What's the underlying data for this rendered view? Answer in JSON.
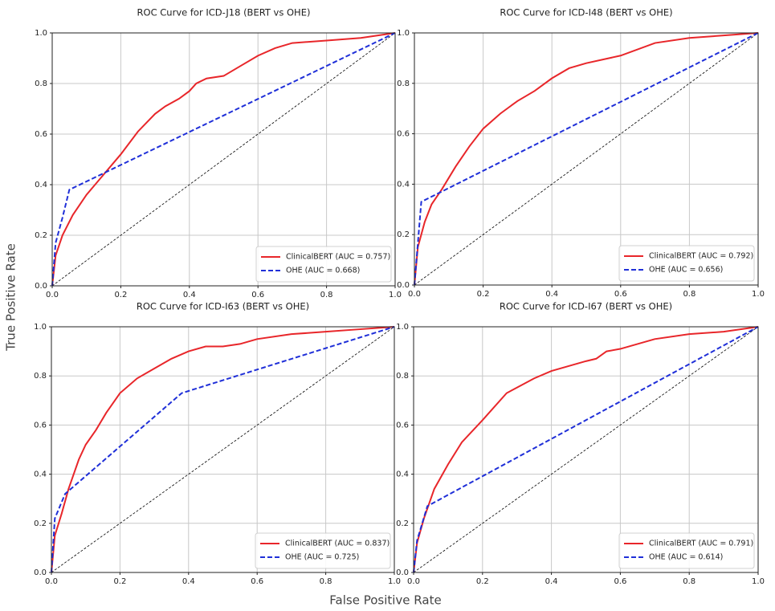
{
  "xlabel": "False Positive Rate",
  "ylabel": "True Positive Rate",
  "chart_data": [
    {
      "type": "line",
      "title": "ROC Curve for ICD-J18 (BERT vs OHE)",
      "xlim": [
        0,
        1
      ],
      "ylim": [
        0,
        1
      ],
      "xticks": [
        {
          "value": 0,
          "label": "0.0"
        },
        0.2,
        0.4,
        0.6,
        0.8,
        {
          "value": 1,
          "label": "1.0"
        }
      ],
      "yticks": [
        {
          "value": 0,
          "label": "0.0"
        },
        0.2,
        0.4,
        0.6,
        0.8,
        {
          "value": 1,
          "label": "1.0"
        }
      ],
      "grid": true,
      "legend": "lower right",
      "diagonal": true,
      "series": [
        {
          "name": "ClinicalBERT (AUC = 0.757)",
          "color": "#e8262a",
          "dashed": false,
          "x": [
            0,
            0.01,
            0.03,
            0.06,
            0.1,
            0.15,
            0.2,
            0.25,
            0.3,
            0.33,
            0.37,
            0.4,
            0.42,
            0.45,
            0.5,
            0.55,
            0.6,
            0.65,
            0.7,
            0.8,
            0.9,
            1
          ],
          "values": [
            0,
            0.12,
            0.2,
            0.28,
            0.36,
            0.44,
            0.52,
            0.61,
            0.68,
            0.71,
            0.74,
            0.77,
            0.8,
            0.82,
            0.83,
            0.87,
            0.91,
            0.94,
            0.96,
            0.97,
            0.98,
            1
          ]
        },
        {
          "name": "OHE (AUC = 0.668)",
          "color": "#1f2fd8",
          "dashed": true,
          "x": [
            0,
            0.01,
            0.03,
            0.05,
            1
          ],
          "values": [
            0,
            0.17,
            0.27,
            0.38,
            1
          ]
        }
      ]
    },
    {
      "type": "line",
      "title": "ROC Curve for ICD-I48 (BERT vs OHE)",
      "xlim": [
        0,
        1
      ],
      "ylim": [
        0,
        1
      ],
      "xticks": [
        {
          "value": 0,
          "label": "0.0"
        },
        0.2,
        0.4,
        0.6,
        0.8,
        {
          "value": 1,
          "label": "1.0"
        }
      ],
      "yticks": [
        {
          "value": 0,
          "label": "0.0"
        },
        0.2,
        0.4,
        0.6,
        0.8,
        {
          "value": 1,
          "label": "1.0"
        }
      ],
      "grid": true,
      "legend": "lower right",
      "diagonal": true,
      "series": [
        {
          "name": "ClinicalBERT (AUC = 0.792)",
          "color": "#e8262a",
          "dashed": false,
          "x": [
            0,
            0.01,
            0.03,
            0.05,
            0.08,
            0.12,
            0.16,
            0.2,
            0.25,
            0.3,
            0.35,
            0.4,
            0.45,
            0.5,
            0.6,
            0.7,
            0.8,
            0.9,
            1
          ],
          "values": [
            0,
            0.15,
            0.25,
            0.32,
            0.38,
            0.47,
            0.55,
            0.62,
            0.68,
            0.73,
            0.77,
            0.82,
            0.86,
            0.88,
            0.91,
            0.96,
            0.98,
            0.99,
            1
          ]
        },
        {
          "name": "OHE (AUC = 0.656)",
          "color": "#1f2fd8",
          "dashed": true,
          "x": [
            0,
            0.02,
            1
          ],
          "values": [
            0,
            0.33,
            1
          ]
        }
      ]
    },
    {
      "type": "line",
      "title": "ROC Curve for ICD-I63 (BERT vs OHE)",
      "xlim": [
        0,
        1
      ],
      "ylim": [
        0,
        1
      ],
      "xticks": [
        {
          "value": 0,
          "label": "0.0"
        },
        0.2,
        0.4,
        0.6,
        0.8,
        {
          "value": 1,
          "label": "1.0"
        }
      ],
      "yticks": [
        {
          "value": 0,
          "label": "0.0"
        },
        0.2,
        0.4,
        0.6,
        0.8,
        {
          "value": 1,
          "label": "1.0"
        }
      ],
      "grid": true,
      "legend": "lower right",
      "diagonal": true,
      "series": [
        {
          "name": "ClinicalBERT (AUC = 0.837)",
          "color": "#e8262a",
          "dashed": false,
          "x": [
            0,
            0.01,
            0.03,
            0.05,
            0.08,
            0.1,
            0.13,
            0.16,
            0.2,
            0.25,
            0.3,
            0.35,
            0.4,
            0.45,
            0.5,
            0.55,
            0.6,
            0.7,
            0.8,
            0.9,
            1
          ],
          "values": [
            0,
            0.15,
            0.24,
            0.34,
            0.46,
            0.52,
            0.58,
            0.65,
            0.73,
            0.79,
            0.83,
            0.87,
            0.9,
            0.92,
            0.92,
            0.93,
            0.95,
            0.97,
            0.98,
            0.99,
            1
          ]
        },
        {
          "name": "OHE (AUC = 0.725)",
          "color": "#1f2fd8",
          "dashed": true,
          "x": [
            0,
            0.01,
            0.04,
            0.38,
            1
          ],
          "values": [
            0,
            0.22,
            0.32,
            0.73,
            1
          ]
        }
      ]
    },
    {
      "type": "line",
      "title": "ROC Curve for ICD-I67 (BERT vs OHE)",
      "xlim": [
        0,
        1
      ],
      "ylim": [
        0,
        1
      ],
      "xticks": [
        {
          "value": 0,
          "label": "0.0"
        },
        0.2,
        0.4,
        0.6,
        0.8,
        {
          "value": 1,
          "label": "1.0"
        }
      ],
      "yticks": [
        {
          "value": 0,
          "label": "0.0"
        },
        0.2,
        0.4,
        0.6,
        0.8,
        {
          "value": 1,
          "label": "1.0"
        }
      ],
      "grid": true,
      "legend": "lower right",
      "diagonal": true,
      "series": [
        {
          "name": "ClinicalBERT (AUC = 0.791)",
          "color": "#e8262a",
          "dashed": false,
          "x": [
            0,
            0.01,
            0.03,
            0.06,
            0.1,
            0.14,
            0.2,
            0.27,
            0.35,
            0.4,
            0.45,
            0.5,
            0.53,
            0.56,
            0.6,
            0.7,
            0.8,
            0.9,
            1
          ],
          "values": [
            0,
            0.12,
            0.22,
            0.34,
            0.44,
            0.53,
            0.62,
            0.73,
            0.79,
            0.82,
            0.84,
            0.86,
            0.87,
            0.9,
            0.91,
            0.95,
            0.97,
            0.98,
            1
          ]
        },
        {
          "name": "OHE (AUC = 0.614)",
          "color": "#1f2fd8",
          "dashed": true,
          "x": [
            0,
            0.01,
            0.04,
            1
          ],
          "values": [
            0,
            0.13,
            0.27,
            1
          ]
        }
      ]
    }
  ]
}
